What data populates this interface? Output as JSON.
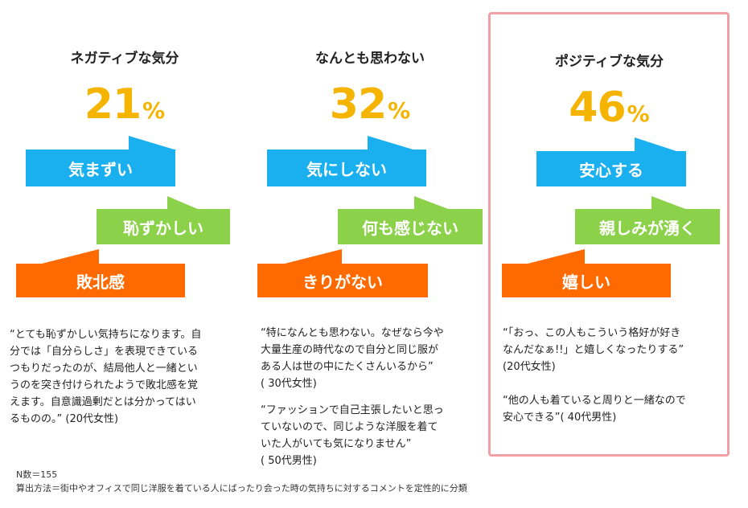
{
  "columns": [
    {
      "heading": "ネガティブな気分",
      "percent": "21",
      "unit": "%",
      "bubbles": [
        "気まずい",
        "恥ずかしい",
        "敗北感"
      ],
      "quotes": [
        "“とても恥ずかしい気持ちになります。自\n分では「自分らしさ」を表現できている\nつもりだったのが、結局他人と一緒とい\nうのを突き付けられたようで敗北感を覚\nえます。自意識過剰だとは分かってはい\nるものの。” (20代女性)"
      ]
    },
    {
      "heading": "なんとも思わない",
      "percent": "32",
      "unit": "%",
      "bubbles": [
        "気にしない",
        "何も感じない",
        "きりがない"
      ],
      "quotes": [
        "“特になんとも思わない。なぜなら今や\n大量生産の時代なので自分と同じ服が\nある人は世の中にたくさんいるから”\n( 30代女性)",
        "“ファッションで自己主張したいと思っ\nていないので、同じような洋服を着て\nいた人がいても気になりません”\n( 50代男性)"
      ]
    },
    {
      "heading": "ポジティブな気分",
      "percent": "46",
      "unit": "%",
      "bubbles": [
        "安心する",
        "親しみが湧く",
        "嬉しい"
      ],
      "quotes": [
        "“「おっ、この人もこういう格好が好き\nなんだなぁ!!」と嬉しくなったりする”\n(20代女性)",
        "“他の人も着ていると周りと一緒なので\n安心できる”( 40代男性)"
      ]
    }
  ],
  "footnote": "N数＝155\n算出方法＝街中やオフィスで同じ洋服を着ている人にばったり会った時の気持ちに対するコメントを定性的に分類",
  "colors": {
    "percent": "#f5b400",
    "bubble_blue": "#1ab0f0",
    "bubble_green": "#8cd14a",
    "bubble_orange": "#ff6a00",
    "highlight_border": "#f2a0a6"
  }
}
